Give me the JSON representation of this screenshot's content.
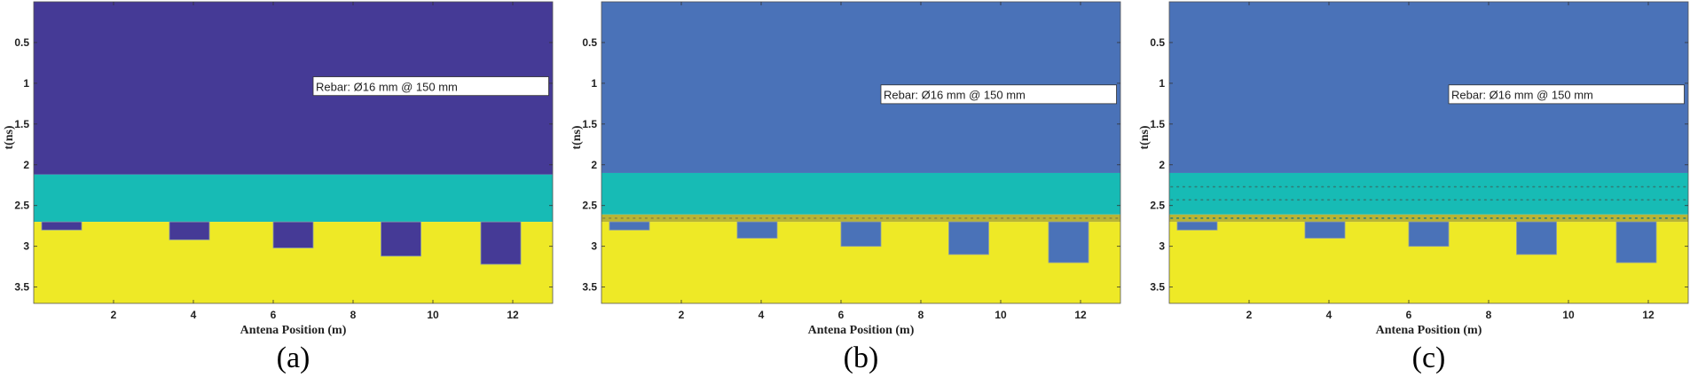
{
  "chart_data": [
    {
      "type": "heatmap",
      "panel_label": "(a)",
      "xlabel": "Antena Position (m)",
      "ylabel": "t(ns)",
      "xlim": [
        0,
        13
      ],
      "ylim": [
        0,
        3.7
      ],
      "x_ticks": [
        2,
        4,
        6,
        8,
        10,
        12
      ],
      "y_ticks": [
        0.5,
        1,
        1.5,
        2,
        2.5,
        3,
        3.5
      ],
      "annotation": "Rebar: Ø16 mm @ 150 mm",
      "colors": {
        "top": "#453a96",
        "middle": "#17bbb5",
        "bottom": "#eee926",
        "notch": "#453a96"
      },
      "layers": {
        "top_end_t": 2.12,
        "middle_end_t": 2.7
      },
      "interface_band": false,
      "dotted_rows": [],
      "notches": [
        {
          "x_start": 0.2,
          "x_end": 1.2,
          "t_bottom": 2.8
        },
        {
          "x_start": 3.4,
          "x_end": 4.4,
          "t_bottom": 2.92
        },
        {
          "x_start": 6.0,
          "x_end": 7.0,
          "t_bottom": 3.02
        },
        {
          "x_start": 8.7,
          "x_end": 9.7,
          "t_bottom": 3.12
        },
        {
          "x_start": 11.2,
          "x_end": 12.2,
          "t_bottom": 3.22
        }
      ]
    },
    {
      "type": "heatmap",
      "panel_label": "(b)",
      "xlabel": "Antena Position (m)",
      "ylabel": "t(ns)",
      "xlim": [
        0,
        13
      ],
      "ylim": [
        0,
        3.7
      ],
      "x_ticks": [
        2,
        4,
        6,
        8,
        10,
        12
      ],
      "y_ticks": [
        0.5,
        1,
        1.5,
        2,
        2.5,
        3,
        3.5
      ],
      "annotation": "Rebar: Ø16 mm @ 150 mm",
      "colors": {
        "top": "#4a72b8",
        "middle": "#17bbb5",
        "bottom": "#eee926",
        "notch": "#4a72b8",
        "band": "#b8b436",
        "dots": "#8a8a40"
      },
      "layers": {
        "top_end_t": 2.1,
        "middle_end_t": 2.61
      },
      "interface_band": true,
      "band_t": [
        2.61,
        2.7
      ],
      "dotted_rows": [
        2.655
      ],
      "notches": [
        {
          "x_start": 0.2,
          "x_end": 1.2,
          "t_bottom": 2.8
        },
        {
          "x_start": 3.4,
          "x_end": 4.4,
          "t_bottom": 2.9
        },
        {
          "x_start": 6.0,
          "x_end": 7.0,
          "t_bottom": 3.0
        },
        {
          "x_start": 8.7,
          "x_end": 9.7,
          "t_bottom": 3.1
        },
        {
          "x_start": 11.2,
          "x_end": 12.2,
          "t_bottom": 3.2
        }
      ]
    },
    {
      "type": "heatmap",
      "panel_label": "(c)",
      "xlabel": "Antena Position (m)",
      "ylabel": "t(ns)",
      "xlim": [
        0,
        13
      ],
      "ylim": [
        0,
        3.7
      ],
      "x_ticks": [
        2,
        4,
        6,
        8,
        10,
        12
      ],
      "y_ticks": [
        0.5,
        1,
        1.5,
        2,
        2.5,
        3,
        3.5
      ],
      "annotation": "Rebar: Ø16 mm @ 150 mm",
      "colors": {
        "top": "#4a72b8",
        "middle": "#17bbb5",
        "bottom": "#eee926",
        "notch": "#4a72b8",
        "band": "#b8b436",
        "dots": "#2f7f7a"
      },
      "layers": {
        "top_end_t": 2.1,
        "middle_end_t": 2.61
      },
      "interface_band": true,
      "band_t": [
        2.61,
        2.7
      ],
      "dotted_rows": [
        2.27,
        2.43,
        2.655
      ],
      "notches": [
        {
          "x_start": 0.2,
          "x_end": 1.2,
          "t_bottom": 2.8
        },
        {
          "x_start": 3.4,
          "x_end": 4.4,
          "t_bottom": 2.9
        },
        {
          "x_start": 6.0,
          "x_end": 7.0,
          "t_bottom": 3.0
        },
        {
          "x_start": 8.7,
          "x_end": 9.7,
          "t_bottom": 3.1
        },
        {
          "x_start": 11.2,
          "x_end": 12.2,
          "t_bottom": 3.2
        }
      ]
    }
  ]
}
